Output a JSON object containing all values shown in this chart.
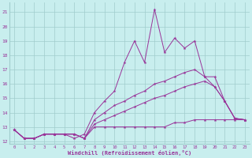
{
  "xlabel": "Windchill (Refroidissement éolien,°C)",
  "bg_color": "#c8eeee",
  "grid_color": "#a0cccc",
  "line_color": "#993399",
  "xlim": [
    -0.5,
    23.5
  ],
  "ylim": [
    11.8,
    21.7
  ],
  "xtick_vals": [
    0,
    1,
    2,
    3,
    4,
    5,
    6,
    7,
    8,
    9,
    10,
    11,
    12,
    13,
    14,
    15,
    16,
    17,
    18,
    19,
    20,
    21,
    22,
    23
  ],
  "ytick_vals": [
    12,
    13,
    14,
    15,
    16,
    17,
    18,
    19,
    20,
    21
  ],
  "series": [
    {
      "x": [
        0,
        1,
        2,
        3,
        4,
        5,
        6,
        7,
        8,
        9,
        10,
        11,
        12,
        13,
        14,
        15,
        16,
        17,
        18,
        19,
        20,
        21,
        22,
        23
      ],
      "y": [
        12.8,
        12.2,
        12.2,
        12.5,
        12.5,
        12.5,
        12.5,
        12.2,
        13.0,
        13.0,
        13.0,
        13.0,
        13.0,
        13.0,
        13.0,
        13.0,
        13.3,
        13.3,
        13.5,
        13.5,
        13.5,
        13.5,
        13.5,
        13.5
      ]
    },
    {
      "x": [
        0,
        1,
        2,
        3,
        4,
        5,
        6,
        7,
        8,
        9,
        10,
        11,
        12,
        13,
        14,
        15,
        16,
        17,
        18,
        19,
        20,
        21,
        22,
        23
      ],
      "y": [
        12.8,
        12.2,
        12.2,
        12.5,
        12.5,
        12.5,
        12.5,
        12.2,
        13.2,
        13.5,
        13.8,
        14.1,
        14.4,
        14.7,
        15.0,
        15.2,
        15.5,
        15.8,
        16.0,
        16.2,
        15.8,
        14.8,
        13.6,
        13.5
      ]
    },
    {
      "x": [
        0,
        1,
        2,
        3,
        4,
        5,
        6,
        7,
        8,
        9,
        10,
        11,
        12,
        13,
        14,
        15,
        16,
        17,
        18,
        19,
        20,
        21,
        22,
        23
      ],
      "y": [
        12.8,
        12.2,
        12.2,
        12.5,
        12.5,
        12.5,
        12.5,
        12.2,
        13.5,
        14.0,
        14.5,
        14.8,
        15.2,
        15.5,
        16.0,
        16.2,
        16.5,
        16.8,
        17.0,
        16.5,
        16.5,
        14.8,
        13.6,
        13.5
      ]
    },
    {
      "x": [
        0,
        1,
        2,
        3,
        4,
        5,
        6,
        7,
        8,
        9,
        10,
        11,
        12,
        13,
        14,
        15,
        16,
        17,
        18,
        19,
        20,
        21,
        22,
        23
      ],
      "y": [
        12.8,
        12.2,
        12.2,
        12.5,
        12.5,
        12.5,
        12.2,
        12.5,
        14.0,
        14.8,
        15.5,
        17.5,
        19.0,
        17.5,
        21.2,
        18.2,
        19.2,
        18.5,
        19.0,
        16.5,
        15.8,
        14.8,
        13.6,
        13.5
      ]
    }
  ]
}
